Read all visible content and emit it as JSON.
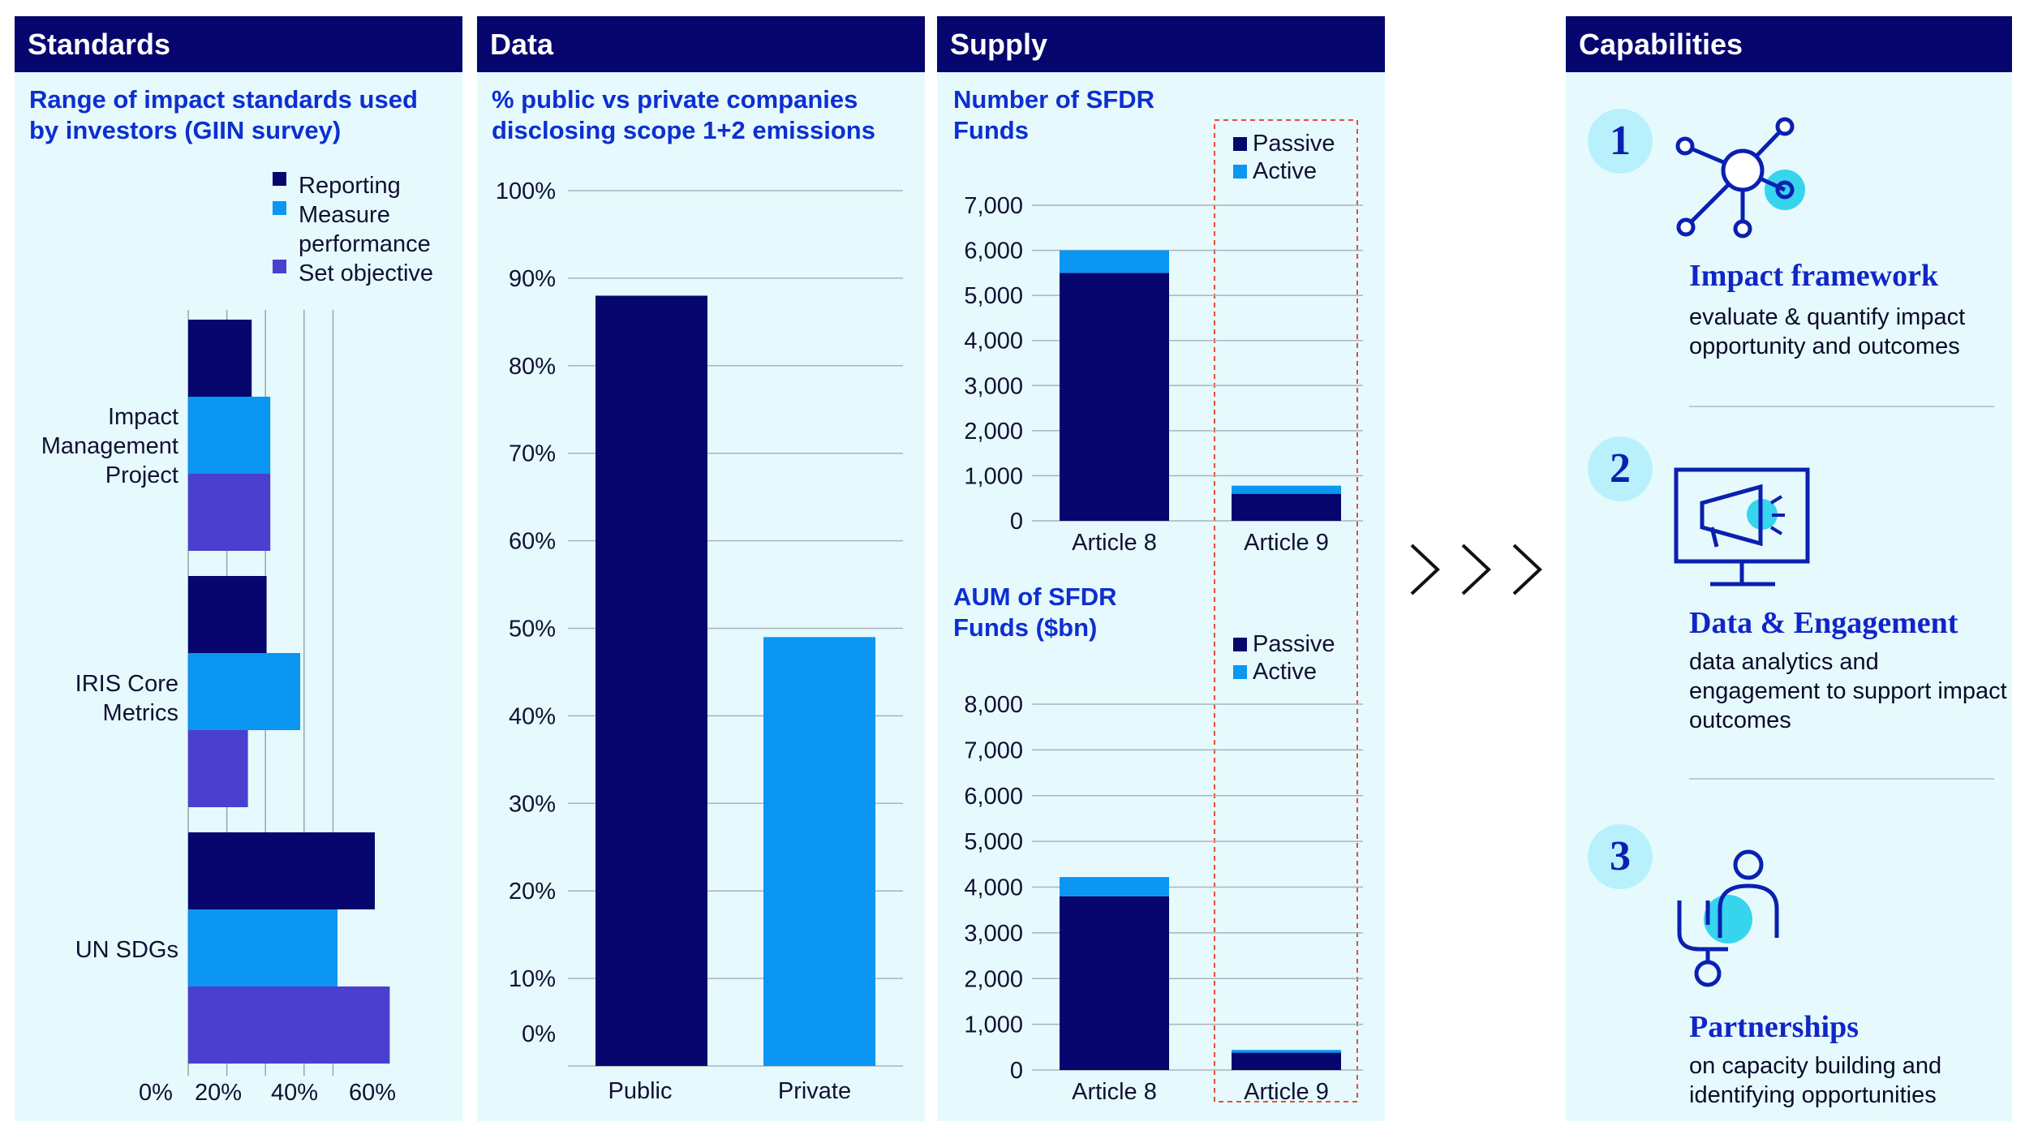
{
  "colors": {
    "navy": "#06066e",
    "sky": "#0a96f2",
    "violet": "#4b3fcf",
    "panel_bg": "#e6fafd",
    "accent_text": "#0d2fd0",
    "dashed_box": "#e0503a"
  },
  "headers": {
    "standards": "Standards",
    "data": "Data",
    "supply": "Supply",
    "capabilities": "Capabilities"
  },
  "chart_data": [
    {
      "type": "bar",
      "orientation": "horizontal",
      "title": "Range of impact standards used by investors (GIIN survey)",
      "categories": [
        "Impact Management Project",
        "IRIS Core Metrics",
        "UN SDGs"
      ],
      "series": [
        {
          "name": "Reporting",
          "color": "#06066e",
          "values": [
            17,
            21,
            50
          ]
        },
        {
          "name": "Measure performance",
          "color": "#0a96f2",
          "values": [
            22,
            30,
            40
          ]
        },
        {
          "name": "Set objective",
          "color": "#4b3fcf",
          "values": [
            22,
            16,
            54
          ]
        }
      ],
      "xticks": [
        "0%",
        "20%",
        "40%",
        "60%"
      ],
      "xlim": [
        0,
        62
      ],
      "legend": "top-right",
      "grid": true
    },
    {
      "type": "bar",
      "title": "% public vs private companies disclosing scope 1+2 emissions",
      "categories": [
        "Public",
        "Private"
      ],
      "values": [
        88,
        49
      ],
      "colors": [
        "#06066e",
        "#0a96f2"
      ],
      "yticks": [
        "0%",
        "10%",
        "20%",
        "30%",
        "40%",
        "50%",
        "60%",
        "70%",
        "80%",
        "90%",
        "100%"
      ],
      "ylim": [
        0,
        100
      ],
      "grid": true
    },
    {
      "type": "bar",
      "stacked": true,
      "title": "Number of SFDR Funds",
      "categories": [
        "Article 8",
        "Article 9"
      ],
      "series": [
        {
          "name": "Passive",
          "color": "#06066e",
          "values": [
            5500,
            600
          ]
        },
        {
          "name": "Active",
          "color": "#0a96f2",
          "values": [
            500,
            180
          ]
        }
      ],
      "yticks": [
        "0",
        "1,000",
        "2,000",
        "3,000",
        "4,000",
        "5,000",
        "6,000",
        "7,000"
      ],
      "ylim": [
        0,
        7000
      ],
      "legend": "top-right",
      "grid": true
    },
    {
      "type": "bar",
      "stacked": true,
      "title": "AUM of SFDR Funds ($bn)",
      "categories": [
        "Article 8",
        "Article 9"
      ],
      "series": [
        {
          "name": "Passive",
          "color": "#06066e",
          "values": [
            3800,
            380
          ]
        },
        {
          "name": "Active",
          "color": "#0a96f2",
          "values": [
            420,
            60
          ]
        }
      ],
      "yticks": [
        "0",
        "1,000",
        "2,000",
        "3,000",
        "4,000",
        "5,000",
        "6,000",
        "7,000",
        "8,000"
      ],
      "ylim": [
        0,
        8000
      ],
      "legend": "top-right",
      "grid": true
    }
  ],
  "arrows": "›››",
  "capabilities": [
    {
      "num": "1",
      "icon": "network-hub-icon",
      "title": "Impact framework",
      "desc": "evaluate & quantify impact opportunity and outcomes"
    },
    {
      "num": "2",
      "icon": "monitor-megaphone-icon",
      "title": "Data & Engagement",
      "desc": "data analytics and engagement to support impact outcomes"
    },
    {
      "num": "3",
      "icon": "person-handshake-icon",
      "title": "Partnerships",
      "desc": "on capacity building and identifying opportunities"
    }
  ]
}
